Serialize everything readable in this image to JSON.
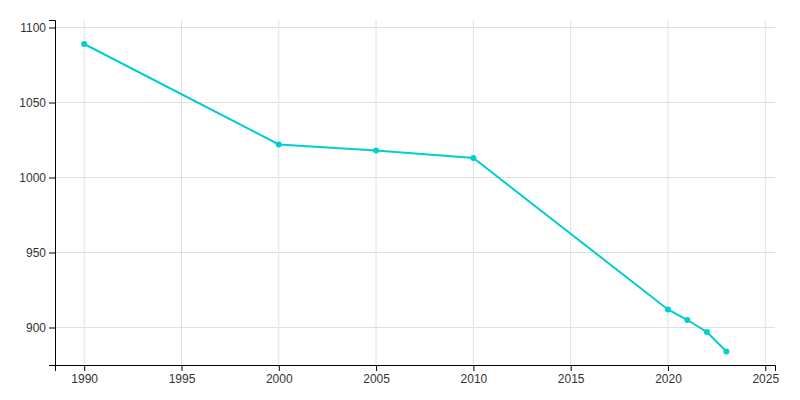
{
  "chart_data": {
    "type": "line",
    "x": [
      1990,
      2000,
      2005,
      2010,
      2020,
      2021,
      2022,
      2023
    ],
    "values": [
      1089,
      1022,
      1018,
      1013,
      912,
      905,
      897,
      884
    ],
    "color": "#00CED1",
    "marker": "circle",
    "xlim": [
      1988.5,
      2025.5
    ],
    "ylim": [
      875,
      1105
    ],
    "xticks": [
      1990,
      1995,
      2000,
      2005,
      2010,
      2015,
      2020,
      2025
    ],
    "yticks": [
      900,
      950,
      1000,
      1050,
      1100
    ],
    "grid": true
  }
}
